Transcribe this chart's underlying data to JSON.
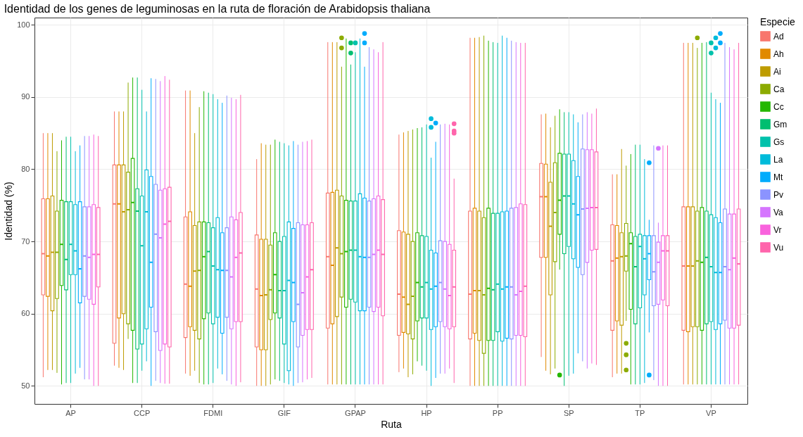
{
  "chart_data": {
    "type": "box",
    "title": "Identidad de los genes de leguminosas en la ruta de floración de Arabidopsis thaliana",
    "xlabel": "Ruta",
    "ylabel": "Identidad (%)",
    "legend_title": "Especie",
    "legend": "right",
    "grid": true,
    "ylim": [
      47.5,
      101
    ],
    "yticks": [
      50,
      60,
      70,
      80,
      90,
      100
    ],
    "categories": [
      "AP",
      "CCP",
      "FDMI",
      "GIF",
      "GPAP",
      "HP",
      "PP",
      "SP",
      "TP",
      "VP"
    ],
    "series": [
      {
        "name": "Ad",
        "color": "#f8766d",
        "boxes": [
          {
            "low": 51.2,
            "q1": 62.6,
            "median": 68.3,
            "q3": 75.9,
            "high": 85.0
          },
          {
            "low": 52.8,
            "q1": 55.9,
            "median": 75.2,
            "q3": 80.6,
            "high": 88.0
          },
          {
            "low": 51.7,
            "q1": 56.7,
            "median": 64.1,
            "q3": 73.4,
            "high": 90.9
          },
          {
            "low": 50.0,
            "q1": 55.4,
            "median": 63.4,
            "q3": 70.9,
            "high": 81.4
          },
          {
            "low": 50.2,
            "q1": 58.0,
            "median": 67.9,
            "q3": 76.7,
            "high": 97.6
          },
          {
            "low": 51.9,
            "q1": 57.0,
            "median": 62.7,
            "q3": 71.5,
            "high": 84.8
          },
          {
            "low": 50.0,
            "q1": 56.5,
            "median": 62.7,
            "q3": 74.2,
            "high": 98.2
          },
          {
            "low": 54.0,
            "q1": 67.8,
            "median": 76.2,
            "q3": 80.8,
            "high": 87.6
          },
          {
            "low": 51.2,
            "q1": 57.7,
            "median": 67.3,
            "q3": 72.3,
            "high": 79.3
          },
          {
            "low": 50.2,
            "q1": 57.7,
            "median": 66.6,
            "q3": 74.8,
            "high": 97.5
          }
        ]
      },
      {
        "name": "Ah",
        "color": "#e18a00",
        "boxes": [
          {
            "low": 52.2,
            "q1": 62.4,
            "median": 68.0,
            "q3": 75.9,
            "high": 85.0
          },
          {
            "low": 52.5,
            "q1": 59.4,
            "median": 75.2,
            "q3": 80.6,
            "high": 88.0
          },
          {
            "low": 51.4,
            "q1": 58.2,
            "median": 63.8,
            "q3": 74.1,
            "high": 90.9
          },
          {
            "low": 50.0,
            "q1": 55.0,
            "median": 62.5,
            "q3": 70.3,
            "high": 83.6
          },
          {
            "low": 50.2,
            "q1": 58.6,
            "median": 66.7,
            "q3": 76.8,
            "high": 97.6
          },
          {
            "low": 52.4,
            "q1": 57.4,
            "median": 62.3,
            "q3": 71.3,
            "high": 85.1
          },
          {
            "low": 50.0,
            "q1": 57.3,
            "median": 63.2,
            "q3": 74.6,
            "high": 98.2
          },
          {
            "low": 52.1,
            "q1": 67.8,
            "median": 76.2,
            "q3": 80.7,
            "high": 87.7
          },
          {
            "low": 51.7,
            "q1": 59.0,
            "median": 67.7,
            "q3": 72.2,
            "high": 79.3
          },
          {
            "low": 50.2,
            "q1": 57.5,
            "median": 66.6,
            "q3": 74.8,
            "high": 97.5
          }
        ]
      },
      {
        "name": "Ai",
        "color": "#be9c00",
        "boxes": [
          {
            "low": 52.2,
            "q1": 60.4,
            "median": 68.5,
            "q3": 76.3,
            "high": 85.0
          },
          {
            "low": 52.2,
            "q1": 60.0,
            "median": 74.1,
            "q3": 80.6,
            "high": 88.0
          },
          {
            "low": 52.1,
            "q1": 57.7,
            "median": 65.9,
            "q3": 72.2,
            "high": 85.0
          },
          {
            "low": 50.0,
            "q1": 55.0,
            "median": 62.6,
            "q3": 70.3,
            "high": 83.4
          },
          {
            "low": 50.2,
            "q1": 59.6,
            "median": 69.1,
            "q3": 77.1,
            "high": 97.6
          },
          {
            "low": 51.2,
            "q1": 57.2,
            "median": 61.3,
            "q3": 71.0,
            "high": 85.3
          },
          {
            "low": 50.0,
            "q1": 56.3,
            "median": 63.2,
            "q3": 74.2,
            "high": 98.3
          },
          {
            "low": 51.6,
            "q1": 62.6,
            "median": 72.1,
            "q3": 78.2,
            "high": 85.8
          },
          {
            "low": 51.7,
            "q1": 58.4,
            "median": 67.9,
            "q3": 71.2,
            "high": 82.8
          },
          {
            "low": 50.2,
            "q1": 58.2,
            "median": 66.6,
            "q3": 74.8,
            "high": 97.5
          }
        ]
      },
      {
        "name": "Ca",
        "color": "#8cab00",
        "boxes": [
          {
            "low": 51.8,
            "q1": 62.1,
            "median": 68.5,
            "q3": 74.2,
            "high": 82.5
          },
          {
            "low": 56.5,
            "q1": 58.6,
            "median": 74.4,
            "q3": 79.6,
            "high": 92.0
          },
          {
            "low": 50.4,
            "q1": 56.5,
            "median": 66.0,
            "q3": 72.7,
            "high": 88.6
          },
          {
            "low": 50.2,
            "q1": 59.2,
            "median": 63.3,
            "q3": 69.5,
            "high": 83.4
          },
          {
            "low": 50.2,
            "q1": 62.3,
            "median": 68.3,
            "q3": 76.3,
            "high": 94.2,
            "outliers": [
              98.2,
              96.8
            ]
          },
          {
            "low": 51.6,
            "q1": 56.5,
            "median": 62.4,
            "q3": 70.0,
            "high": 85.5
          },
          {
            "low": 50.0,
            "q1": 54.5,
            "median": 62.6,
            "q3": 73.3,
            "high": 98.5
          },
          {
            "low": 52.4,
            "q1": 67.2,
            "median": 74.0,
            "q3": 80.9,
            "high": 87.4
          },
          {
            "low": 59.0,
            "q1": 65.9,
            "median": 68.0,
            "q3": 72.5,
            "high": 80.5,
            "outliers": [
              55.9,
              54.3,
              52.2
            ]
          },
          {
            "low": 50.2,
            "q1": 58.2,
            "median": 67.3,
            "q3": 74.2,
            "high": 96.8,
            "outliers": [
              98.2
            ]
          }
        ]
      },
      {
        "name": "Cc",
        "color": "#24b700",
        "boxes": [
          {
            "low": 50.2,
            "q1": 63.9,
            "median": 69.6,
            "q3": 75.7,
            "high": 84.0
          },
          {
            "low": 50.4,
            "q1": 57.7,
            "median": 75.4,
            "q3": 81.5,
            "high": 92.7
          },
          {
            "low": 50.2,
            "q1": 59.3,
            "median": 67.9,
            "q3": 72.7,
            "high": 90.8
          },
          {
            "low": 50.9,
            "q1": 60.1,
            "median": 65.4,
            "q3": 71.2,
            "high": 84.1
          },
          {
            "low": 50.2,
            "q1": 60.9,
            "median": 68.6,
            "q3": 75.7,
            "high": 98.1
          },
          {
            "low": 53.4,
            "q1": 59.0,
            "median": 64.3,
            "q3": 71.2,
            "high": 85.7
          },
          {
            "low": 50.0,
            "q1": 56.3,
            "median": 63.5,
            "q3": 74.6,
            "high": 97.8
          },
          {
            "low": 66.1,
            "q1": 71.0,
            "median": 75.7,
            "q3": 82.2,
            "high": 88.3,
            "outliers": [
              51.5
            ]
          },
          {
            "low": 50.2,
            "q1": 60.6,
            "median": 69.7,
            "q3": 71.2,
            "high": 82.1
          },
          {
            "low": 50.2,
            "q1": 57.7,
            "median": 67.1,
            "q3": 74.7,
            "high": 97.5
          }
        ]
      },
      {
        "name": "Gm",
        "color": "#00be70",
        "boxes": [
          {
            "low": 50.4,
            "q1": 63.3,
            "median": 67.5,
            "q3": 75.5,
            "high": 84.5
          },
          {
            "low": 50.4,
            "q1": 55.1,
            "median": 74.2,
            "q3": 77.3,
            "high": 92.7
          },
          {
            "low": 50.2,
            "q1": 60.1,
            "median": 68.6,
            "q3": 72.6,
            "high": 90.6
          },
          {
            "low": 50.7,
            "q1": 59.4,
            "median": 63.2,
            "q3": 70.0,
            "high": 83.8
          },
          {
            "low": 50.2,
            "q1": 62.0,
            "median": 68.8,
            "q3": 75.6,
            "high": 94.5,
            "outliers": [
              97.5,
              96.1
            ]
          },
          {
            "low": 52.8,
            "q1": 59.4,
            "median": 63.7,
            "q3": 70.8,
            "high": 85.8
          },
          {
            "low": 50.0,
            "q1": 56.3,
            "median": 63.3,
            "q3": 73.9,
            "high": 97.6
          },
          {
            "low": 50.0,
            "q1": 68.3,
            "median": 76.3,
            "q3": 82.1,
            "high": 87.9
          },
          {
            "low": 50.2,
            "q1": 58.6,
            "median": 66.5,
            "q3": 70.7,
            "high": 83.4
          },
          {
            "low": 50.2,
            "q1": 58.6,
            "median": 67.8,
            "q3": 74.2,
            "high": 97.6
          }
        ]
      },
      {
        "name": "Gs",
        "color": "#00c1ab",
        "boxes": [
          {
            "low": 50.4,
            "q1": 65.4,
            "median": 69.6,
            "q3": 75.5,
            "high": 84.5
          },
          {
            "low": 52.1,
            "q1": 55.8,
            "median": 69.4,
            "q3": 76.3,
            "high": 91.0
          },
          {
            "low": 50.4,
            "q1": 58.6,
            "median": 66.6,
            "q3": 71.9,
            "high": 90.4
          },
          {
            "low": 50.4,
            "q1": 55.8,
            "median": 63.2,
            "q3": 70.7,
            "high": 83.6
          },
          {
            "low": 50.2,
            "q1": 61.6,
            "median": 68.8,
            "q3": 75.6,
            "high": 96.2,
            "outliers": [
              97.5
            ]
          },
          {
            "low": 52.1,
            "q1": 59.4,
            "median": 64.3,
            "q3": 70.7,
            "high": 86.2
          },
          {
            "low": 50.0,
            "q1": 57.5,
            "median": 64.1,
            "q3": 73.9,
            "high": 97.5
          },
          {
            "low": 51.4,
            "q1": 69.3,
            "median": 76.3,
            "q3": 82.1,
            "high": 87.9
          },
          {
            "low": 50.2,
            "q1": 60.8,
            "median": 69.3,
            "q3": 71.0,
            "high": 83.4
          },
          {
            "low": 50.2,
            "q1": 58.9,
            "median": 66.5,
            "q3": 73.7,
            "high": 90.6,
            "outliers": [
              97.5,
              96.1
            ]
          }
        ]
      },
      {
        "name": "La",
        "color": "#00bbda",
        "boxes": [
          {
            "low": 51.7,
            "q1": 65.4,
            "median": 68.7,
            "q3": 75.1,
            "high": 82.5
          },
          {
            "low": 53.4,
            "q1": 57.9,
            "median": 74.1,
            "q3": 79.9,
            "high": 88.0
          },
          {
            "low": 52.4,
            "q1": 59.5,
            "median": 66.1,
            "q3": 73.3,
            "high": 89.7
          },
          {
            "low": 50.2,
            "q1": 52.1,
            "median": 64.6,
            "q3": 72.7,
            "high": 83.3
          },
          {
            "low": 50.2,
            "q1": 60.4,
            "median": 67.9,
            "q3": 76.6,
            "high": 98.1
          },
          {
            "low": 50.0,
            "q1": 57.8,
            "median": 63.4,
            "q3": 68.8,
            "high": 81.6,
            "outliers": [
              87.0,
              85.8
            ]
          },
          {
            "low": 50.0,
            "q1": 56.2,
            "median": 63.4,
            "q3": 74.1,
            "high": 98.5
          },
          {
            "low": 51.7,
            "q1": 67.6,
            "median": 75.2,
            "q3": 81.2,
            "high": 87.6
          },
          {
            "low": 50.4,
            "q1": 62.6,
            "median": 67.6,
            "q3": 70.8,
            "high": 81.4
          },
          {
            "low": 50.2,
            "q1": 57.8,
            "median": 65.7,
            "q3": 73.3,
            "high": 89.7,
            "outliers": [
              98.2,
              96.8
            ]
          }
        ]
      },
      {
        "name": "Mt",
        "color": "#00acfc",
        "boxes": [
          {
            "low": 52.5,
            "q1": 61.5,
            "median": 66.2,
            "q3": 75.5,
            "high": 83.3
          },
          {
            "low": 50.0,
            "q1": 60.9,
            "median": 67.1,
            "q3": 79.0,
            "high": 92.6
          },
          {
            "low": 51.6,
            "q1": 57.3,
            "median": 66.0,
            "q3": 71.2,
            "high": 89.2
          },
          {
            "low": 50.0,
            "q1": 58.9,
            "median": 64.3,
            "q3": 71.8,
            "high": 83.9
          },
          {
            "low": 50.2,
            "q1": 60.4,
            "median": 67.8,
            "q3": 76.0,
            "high": 94.2,
            "outliers": [
              98.8,
              97.5
            ]
          },
          {
            "low": 51.1,
            "q1": 58.2,
            "median": 63.8,
            "q3": 68.4,
            "high": 83.8,
            "outliers": [
              86.4
            ]
          },
          {
            "low": 50.0,
            "q1": 56.6,
            "median": 63.7,
            "q3": 74.2,
            "high": 98.2
          },
          {
            "low": 54.5,
            "q1": 66.4,
            "median": 73.7,
            "q3": 79.0,
            "high": 86.5
          },
          {
            "low": 57.4,
            "q1": 64.7,
            "median": 68.3,
            "q3": 70.8,
            "high": 73.0,
            "outliers": [
              80.9,
              51.5
            ]
          },
          {
            "low": 50.2,
            "q1": 58.6,
            "median": 65.7,
            "q3": 72.6,
            "high": 89.2,
            "outliers": [
              98.8,
              97.5
            ]
          }
        ]
      },
      {
        "name": "Pv",
        "color": "#8b93ff",
        "boxes": [
          {
            "low": 50.9,
            "q1": 62.4,
            "median": 68.0,
            "q3": 74.8,
            "high": 84.6
          },
          {
            "low": 50.7,
            "q1": 57.5,
            "median": 71.0,
            "q3": 77.9,
            "high": 92.5
          },
          {
            "low": 50.7,
            "q1": 59.5,
            "median": 66.0,
            "q3": 71.9,
            "high": 90.2
          },
          {
            "low": 50.4,
            "q1": 55.4,
            "median": 61.3,
            "q3": 72.6,
            "high": 83.4
          },
          {
            "low": 50.2,
            "q1": 60.9,
            "median": 67.8,
            "q3": 75.6,
            "high": 96.9
          },
          {
            "low": 51.7,
            "q1": 58.9,
            "median": 64.3,
            "q3": 70.1,
            "high": 86.2
          },
          {
            "low": 50.0,
            "q1": 56.5,
            "median": 63.7,
            "q3": 74.6,
            "high": 97.8
          },
          {
            "low": 53.4,
            "q1": 65.4,
            "median": 74.5,
            "q3": 82.8,
            "high": 87.6
          },
          {
            "low": 50.8,
            "q1": 61.1,
            "median": 65.8,
            "q3": 70.8,
            "high": 83.3
          },
          {
            "low": 50.2,
            "q1": 59.1,
            "median": 66.5,
            "q3": 74.5,
            "high": 97.5
          }
        ]
      },
      {
        "name": "Va",
        "color": "#d575fe",
        "boxes": [
          {
            "low": 50.9,
            "q1": 62.0,
            "median": 67.8,
            "q3": 74.8,
            "high": 84.6
          },
          {
            "low": 50.4,
            "q1": 54.9,
            "median": 70.5,
            "q3": 77.1,
            "high": 92.2
          },
          {
            "low": 50.2,
            "q1": 57.9,
            "median": 65.1,
            "q3": 73.4,
            "high": 89.9
          },
          {
            "low": 50.5,
            "q1": 57.0,
            "median": 62.9,
            "q3": 72.3,
            "high": 83.8
          },
          {
            "low": 50.2,
            "q1": 60.3,
            "median": 68.2,
            "q3": 75.9,
            "high": 96.6
          },
          {
            "low": 51.7,
            "q1": 58.2,
            "median": 63.4,
            "q3": 70.0,
            "high": 86.3
          },
          {
            "low": 50.0,
            "q1": 57.0,
            "median": 62.6,
            "q3": 74.7,
            "high": 97.6
          },
          {
            "low": 52.4,
            "q1": 67.1,
            "median": 74.6,
            "q3": 82.7,
            "high": 87.9
          },
          {
            "low": 50.0,
            "q1": 61.3,
            "median": 67.1,
            "q3": 69.9,
            "high": 72.6,
            "outliers": [
              82.9
            ]
          },
          {
            "low": 50.2,
            "q1": 58.0,
            "median": 66.1,
            "q3": 73.8,
            "high": 96.9
          }
        ]
      },
      {
        "name": "Vr",
        "color": "#f962dd",
        "boxes": [
          {
            "low": 50.0,
            "q1": 61.3,
            "median": 68.2,
            "q3": 75.1,
            "high": 84.8
          },
          {
            "low": 50.3,
            "q1": 55.8,
            "median": 72.4,
            "q3": 77.3,
            "high": 92.9
          },
          {
            "low": 50.0,
            "q1": 58.9,
            "median": 67.8,
            "q3": 73.0,
            "high": 89.7
          },
          {
            "low": 50.9,
            "q1": 57.8,
            "median": 65.1,
            "q3": 72.3,
            "high": 83.9
          },
          {
            "low": 50.2,
            "q1": 60.9,
            "median": 68.8,
            "q3": 76.3,
            "high": 96.2
          },
          {
            "low": 52.4,
            "q1": 57.9,
            "median": 62.5,
            "q3": 69.6,
            "high": 86.2
          },
          {
            "low": 50.0,
            "q1": 57.0,
            "median": 63.1,
            "q3": 75.2,
            "high": 97.5
          },
          {
            "low": 53.1,
            "q1": 68.8,
            "median": 74.7,
            "q3": 82.7,
            "high": 87.7
          },
          {
            "low": 50.0,
            "q1": 61.9,
            "median": 68.7,
            "q3": 70.8,
            "high": 83.3
          },
          {
            "low": 50.2,
            "q1": 58.0,
            "median": 67.7,
            "q3": 73.8,
            "high": 96.6
          }
        ]
      },
      {
        "name": "Vu",
        "color": "#ff65ac",
        "boxes": [
          {
            "low": 50.0,
            "q1": 63.7,
            "median": 68.2,
            "q3": 74.7,
            "high": 84.6
          },
          {
            "low": 50.3,
            "q1": 55.4,
            "median": 72.8,
            "q3": 77.5,
            "high": 92.4
          },
          {
            "low": 50.5,
            "q1": 58.9,
            "median": 68.4,
            "q3": 74.0,
            "high": 90.3
          },
          {
            "low": 51.1,
            "q1": 57.8,
            "median": 66.1,
            "q3": 72.6,
            "high": 84.1
          },
          {
            "low": 50.2,
            "q1": 59.7,
            "median": 68.2,
            "q3": 75.8,
            "high": 97.6
          },
          {
            "low": 50.4,
            "q1": 58.2,
            "median": 63.7,
            "q3": 68.8,
            "high": 78.7,
            "outliers": [
              86.3,
              85.3,
              85.0
            ]
          },
          {
            "low": 50.0,
            "q1": 56.8,
            "median": 63.8,
            "q3": 75.1,
            "high": 97.5
          },
          {
            "low": 52.9,
            "q1": 68.9,
            "median": 74.7,
            "q3": 82.4,
            "high": 88.4
          },
          {
            "low": 50.0,
            "q1": 61.1,
            "median": 68.7,
            "q3": 70.8,
            "high": 83.3
          },
          {
            "low": 50.2,
            "q1": 58.4,
            "median": 66.9,
            "q3": 74.5,
            "high": 97.5
          }
        ]
      }
    ]
  }
}
